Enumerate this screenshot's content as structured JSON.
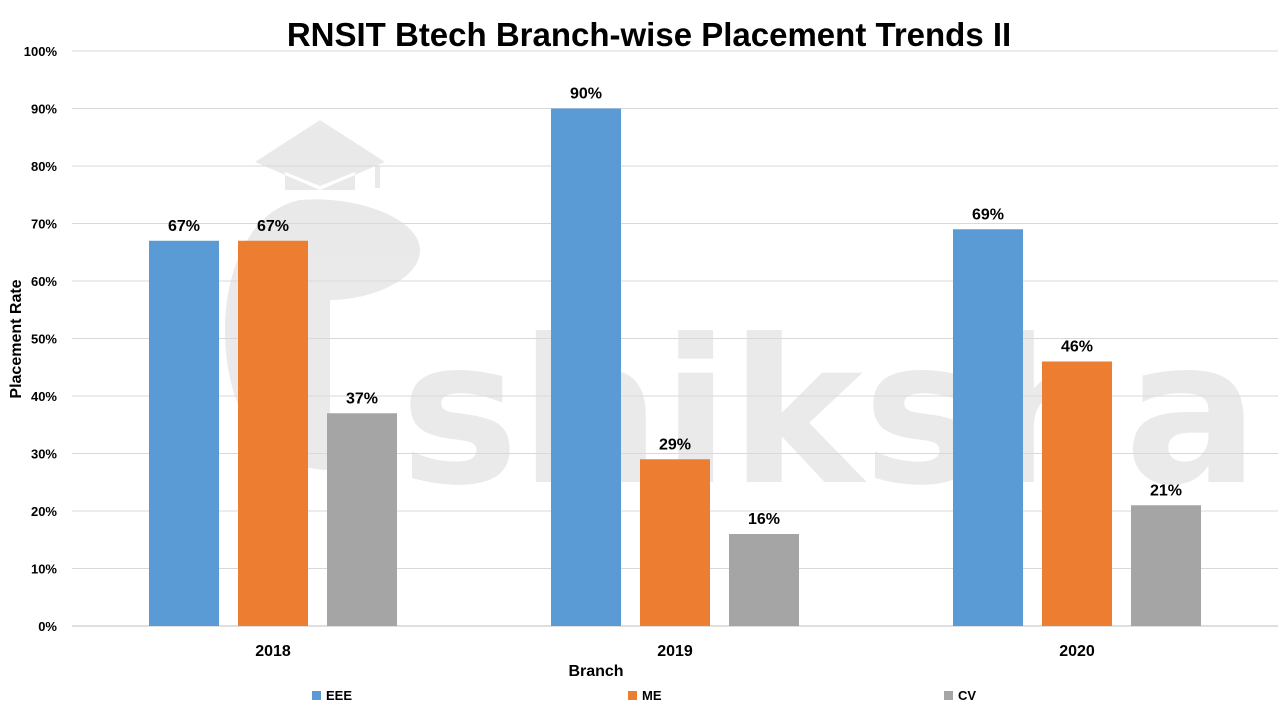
{
  "watermark": "shiksha",
  "chart_data": {
    "type": "bar",
    "title": "RNSIT Btech Branch-wise Placement Trends II",
    "xlabel": "Branch",
    "ylabel": "Placement Rate",
    "categories": [
      "2018",
      "2019",
      "2020"
    ],
    "series": [
      {
        "name": "EEE",
        "color": "#5b9bd5",
        "values": [
          67,
          90,
          69
        ]
      },
      {
        "name": "ME",
        "color": "#ed7d31",
        "values": [
          67,
          29,
          46
        ]
      },
      {
        "name": "CV",
        "color": "#a5a5a5",
        "values": [
          37,
          16,
          21
        ]
      }
    ],
    "ylim": [
      0,
      100
    ],
    "yticks": [
      0,
      10,
      20,
      30,
      40,
      50,
      60,
      70,
      80,
      90,
      100
    ],
    "ytick_labels": [
      "0%",
      "10%",
      "20%",
      "30%",
      "40%",
      "50%",
      "60%",
      "70%",
      "80%",
      "90%",
      "100%"
    ],
    "data_labels": [
      [
        "67%",
        "90%",
        "69%"
      ],
      [
        "67%",
        "29%",
        "46%"
      ],
      [
        "37%",
        "16%",
        "21%"
      ]
    ],
    "grid": true,
    "legend_position": "bottom"
  }
}
